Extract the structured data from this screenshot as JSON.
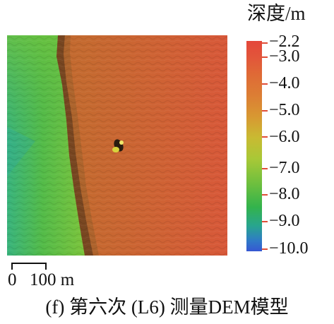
{
  "legend": {
    "title": "深度/m",
    "ticks": [
      "−2.2",
      "−3.0",
      "−4.0",
      "−5.0",
      "−6.0",
      "−7.0",
      "−8.0",
      "−9.0",
      "−10.0"
    ],
    "colors": {
      "shallow": "#e4473a",
      "mid_shallow": "#dc7e34",
      "mid": "#c9ba32",
      "mid_deep": "#33b34c",
      "deep": "#3657d2"
    }
  },
  "scale_bar": {
    "zero": "0",
    "distance": "100 m"
  },
  "caption": "(f) 第六次 (L6) 测量DEM模型"
}
